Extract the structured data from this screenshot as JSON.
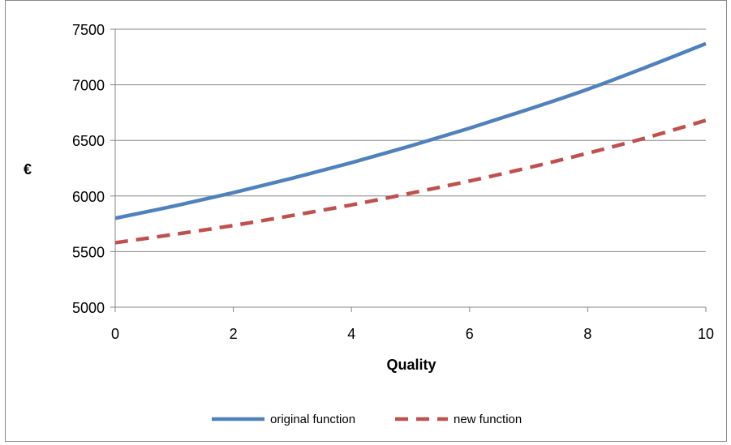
{
  "chart_data": {
    "type": "line",
    "xlabel": "Quality",
    "ylabel": "€",
    "xlim": [
      0,
      10
    ],
    "ylim": [
      5000,
      7500
    ],
    "x_ticks": [
      0,
      2,
      4,
      6,
      8,
      10
    ],
    "y_ticks": [
      5000,
      5500,
      6000,
      6500,
      7000,
      7500
    ],
    "grid": "horizontal",
    "legend_position": "bottom",
    "x": [
      0,
      1,
      2,
      3,
      4,
      5,
      6,
      7,
      8,
      9,
      10
    ],
    "series": [
      {
        "name": "original function",
        "color": "#4F81BD",
        "style": "solid",
        "values": [
          5800,
          5910,
          6030,
          6160,
          6300,
          6450,
          6610,
          6780,
          6960,
          7160,
          7370
        ]
      },
      {
        "name": "new function",
        "color": "#C0504D",
        "style": "dashed",
        "values": [
          5580,
          5655,
          5735,
          5825,
          5920,
          6025,
          6135,
          6255,
          6385,
          6525,
          6680
        ]
      }
    ]
  }
}
